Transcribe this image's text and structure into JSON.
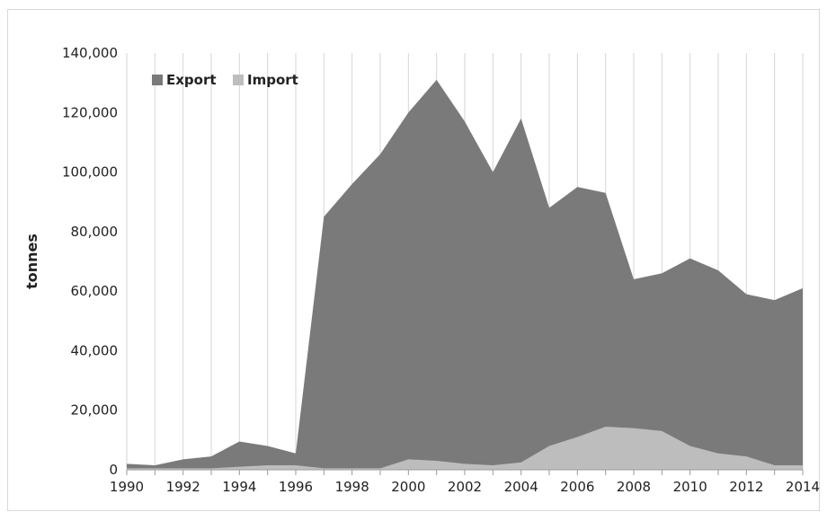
{
  "chart_data": {
    "type": "area",
    "stacked": false,
    "title": "",
    "xlabel": "",
    "ylabel": "tonnes",
    "ylim": [
      0,
      140000
    ],
    "yticks": [
      "0",
      "20,000",
      "40,000",
      "60,000",
      "80,000",
      "100,000",
      "120,000",
      "140,000"
    ],
    "xticks": [
      "1990",
      "1992",
      "1994",
      "1996",
      "1998",
      "2000",
      "2002",
      "2004",
      "2006",
      "2008",
      "2010",
      "2012",
      "2014"
    ],
    "grid": "vertical",
    "legend": "top-left",
    "x": [
      1990,
      1991,
      1992,
      1993,
      1994,
      1995,
      1996,
      1997,
      1998,
      1999,
      2000,
      2001,
      2002,
      2003,
      2004,
      2005,
      2006,
      2007,
      2008,
      2009,
      2010,
      2011,
      2012,
      2013,
      2014
    ],
    "series": [
      {
        "name": "Export",
        "color": "#7a7a7a",
        "values": [
          2000,
          1500,
          3500,
          4500,
          9500,
          8000,
          5500,
          85000,
          96000,
          106000,
          120000,
          131000,
          117000,
          100000,
          118000,
          88000,
          95000,
          93000,
          64000,
          66000,
          71000,
          67000,
          59000,
          57000,
          61000
        ]
      },
      {
        "name": "Import",
        "color": "#bdbdbd",
        "values": [
          500,
          500,
          500,
          500,
          1000,
          1500,
          1500,
          500,
          500,
          500,
          3500,
          3000,
          2000,
          1500,
          2500,
          8000,
          11000,
          14500,
          14000,
          13000,
          8000,
          5500,
          4500,
          1500,
          1500
        ]
      }
    ]
  }
}
